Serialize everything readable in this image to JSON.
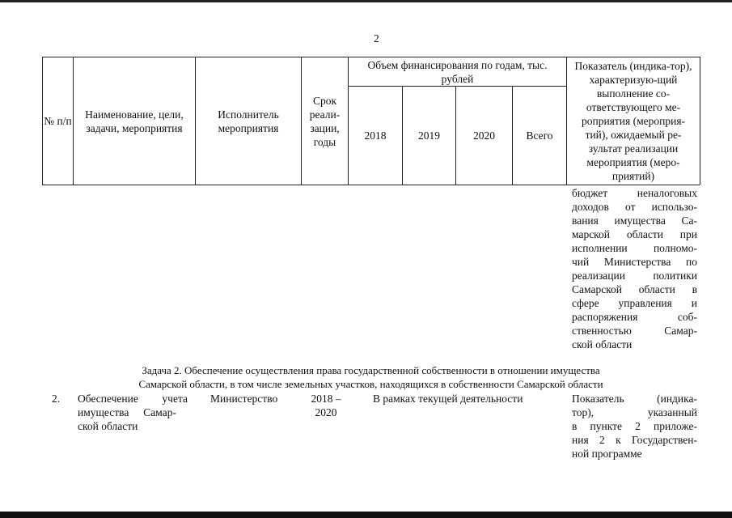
{
  "page_number": "2",
  "table_header": {
    "num": "№ п/п",
    "name": "Наименование, цели, задачи, мероприятия",
    "executor": "Исполнитель мероприятия",
    "term": "Срок реали-зации, годы",
    "funding": "Объем финансирования по годам, тыс. рублей",
    "years": [
      "2018",
      "2019",
      "2020",
      "Всего"
    ],
    "indicator": "Показатель (индика-тор), характеризую-щий выполнение со-ответствующего ме-роприятия (мероприя-тий), ожидаемый ре-зультат реализации мероприятия (меро-приятий)"
  },
  "continuation_lines": [
    "бюджет неналоговых",
    "доходов от использо-",
    "вания имущества Са-",
    "марской области при",
    "исполнении полномо-",
    "чий Министерства по",
    "реализации политики",
    "Самарской области в",
    "сфере управления и",
    "распоряжения соб-",
    "ственностью Самар-",
    "ской области"
  ],
  "task_heading": [
    "Задача 2. Обеспечение осуществления права государственной собственности в отношении имущества",
    "Самарской области, в том числе земельных участков, находящихся в собственности Самарской области"
  ],
  "row2": {
    "num": "2.",
    "name_lines": [
      "Обеспечение учета",
      "имущества Самар-",
      "ской области"
    ],
    "executor": "Министерство",
    "term_lines": [
      "2018 –",
      "2020"
    ],
    "funding": "В рамках текущей деятельности",
    "indicator_lines": [
      "Показатель (индика-",
      "тор), указанный",
      "в пункте 2 приложе-",
      "ния 2 к Государствен-",
      "ной программе"
    ]
  }
}
